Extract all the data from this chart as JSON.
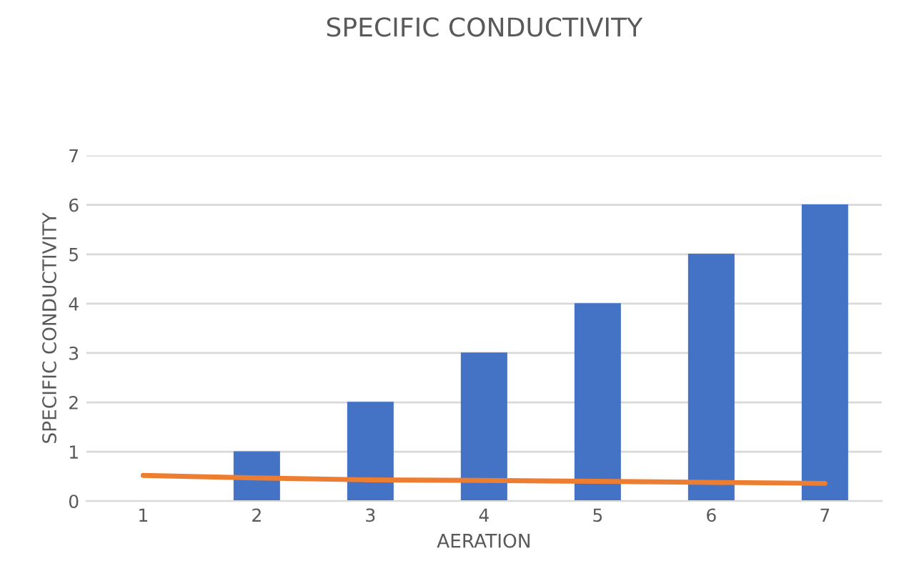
{
  "chart_data": {
    "type": "bar",
    "title": "SPECIFIC CONDUCTIVITY",
    "xlabel": "AERATION",
    "ylabel": "SPECIFIC CONDUCTIVITY",
    "categories": [
      "1",
      "2",
      "3",
      "4",
      "5",
      "6",
      "7"
    ],
    "series": [
      {
        "color": "#4472c4",
        "values": [
          0,
          1,
          2,
          3,
          4,
          5,
          6
        ]
      },
      {
        "type": "line",
        "color": "#ed7d31",
        "values": [
          0.52,
          0.47,
          0.43,
          0.42,
          0.4,
          0.38,
          0.36
        ]
      }
    ],
    "ylim": [
      0,
      7
    ],
    "yticks": [
      0,
      1,
      2,
      3,
      4,
      5,
      6,
      7
    ],
    "grid": "y",
    "legend": false,
    "marker": "none",
    "line_style": "solid"
  }
}
